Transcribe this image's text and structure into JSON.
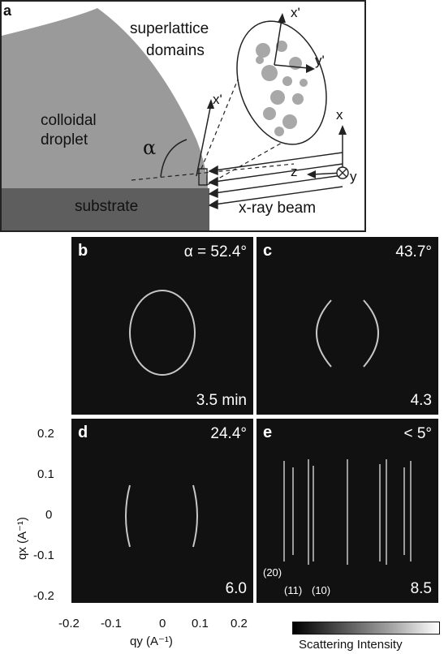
{
  "panel_a": {
    "label": "a",
    "superlattice": "superlattice",
    "domains": "domains",
    "colloidal": "colloidal",
    "droplet": "droplet",
    "substrate": "substrate",
    "xray_beam": "x-ray beam",
    "alpha": "α",
    "x_prime_1": "x'",
    "x_prime_2": "x'",
    "y_prime": "y'",
    "x": "x",
    "y": "y",
    "z": "z"
  },
  "panel_b": {
    "label": "b",
    "angle": "α = 52.4°",
    "time": "3.5 min"
  },
  "panel_c": {
    "label": "c",
    "angle": "43.7°",
    "time": "4.3"
  },
  "panel_d": {
    "label": "d",
    "angle": "24.4°",
    "time": "6.0"
  },
  "panel_e": {
    "label": "e",
    "angle": "< 5°",
    "time": "8.5",
    "miller": {
      "m20": "(20)",
      "m11": "(11)",
      "m10": "(10)"
    }
  },
  "axes": {
    "y_ticks": [
      "0.2",
      "0.1",
      "0",
      "-0.1",
      "-0.2"
    ],
    "x_ticks": [
      "-0.2",
      "-0.1",
      "0",
      "0.1",
      "0.2"
    ],
    "y_label": "qx (A⁻¹)",
    "x_label": "qy (A⁻¹)"
  },
  "colorbar": {
    "label": "Scattering Intensity"
  }
}
